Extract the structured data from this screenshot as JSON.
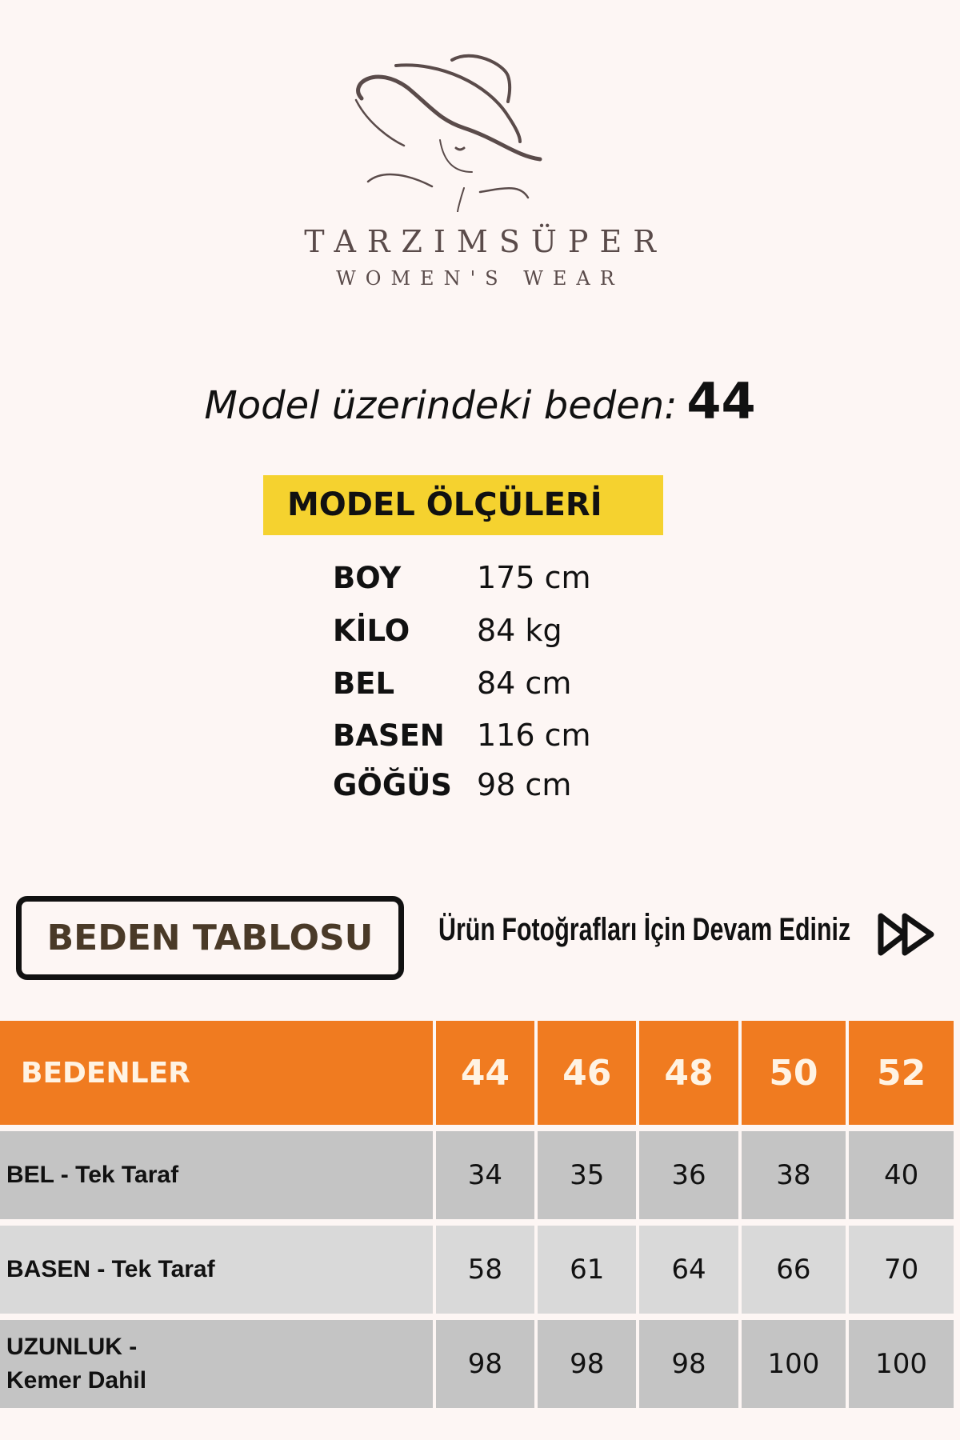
{
  "logo": {
    "brand": "TARZIMSÜPER",
    "tagline": "WOMEN'S WEAR",
    "icon": "woman-in-hat-logo"
  },
  "model": {
    "label": "Model üzerindeki beden:",
    "size": "44"
  },
  "measurements": {
    "title": "MODEL ÖLÇÜLERİ",
    "highlight_color": "#f5d22f",
    "rows": [
      {
        "label": "BOY",
        "value": "175 cm"
      },
      {
        "label": "KİLO",
        "value": "84 kg"
      },
      {
        "label": "BEL",
        "value": "84 cm"
      },
      {
        "label": "BASEN",
        "value": "116 cm"
      },
      {
        "label": "GÖĞÜS",
        "value": "98 cm"
      }
    ]
  },
  "size_chart_button": "BEDEN TABLOSU",
  "continue_link": {
    "label": "Ürün Fotoğrafları İçin Devam Ediniz",
    "icon": "fast-forward-icon"
  },
  "table": {
    "header_color": "#f07b20",
    "headers": [
      "BEDENLER",
      "44",
      "46",
      "48",
      "50",
      "52"
    ],
    "rows": [
      {
        "label": "BEL - Tek Taraf",
        "values": [
          "34",
          "35",
          "36",
          "38",
          "40"
        ]
      },
      {
        "label": "BASEN - Tek Taraf",
        "values": [
          "58",
          "61",
          "64",
          "66",
          "70"
        ]
      },
      {
        "label": "UZUNLUK - Kemer Dahil",
        "label_lines": [
          "UZUNLUK -",
          "Kemer Dahil"
        ],
        "values": [
          "98",
          "98",
          "98",
          "100",
          "100"
        ]
      }
    ]
  }
}
